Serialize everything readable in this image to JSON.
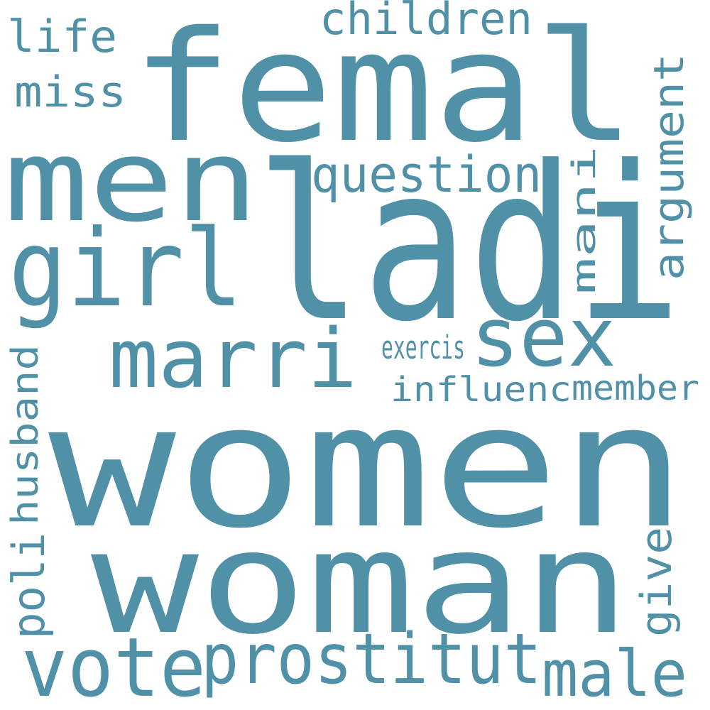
{
  "word_cloud": {
    "color": "#5191a8",
    "background": "#ffffff",
    "words": [
      {
        "id": "women",
        "text": "women"
      },
      {
        "id": "woman",
        "text": "woman"
      },
      {
        "id": "ladi",
        "text": "ladi"
      },
      {
        "id": "femal",
        "text": "femal"
      },
      {
        "id": "men",
        "text": "men"
      },
      {
        "id": "girl",
        "text": "girl"
      },
      {
        "id": "marri",
        "text": "marri"
      },
      {
        "id": "sex",
        "text": "sex"
      },
      {
        "id": "vote",
        "text": "vote"
      },
      {
        "id": "prostitut",
        "text": "prostitut"
      },
      {
        "id": "male",
        "text": "male"
      },
      {
        "id": "question",
        "text": "question"
      },
      {
        "id": "children",
        "text": "children"
      },
      {
        "id": "life",
        "text": "life"
      },
      {
        "id": "miss",
        "text": "miss"
      },
      {
        "id": "argument",
        "text": "argument"
      },
      {
        "id": "exercis",
        "text": "exercis"
      },
      {
        "id": "mani",
        "text": "mani"
      },
      {
        "id": "influenc",
        "text": "influenc"
      },
      {
        "id": "member",
        "text": "member"
      },
      {
        "id": "husband",
        "text": "husband"
      },
      {
        "id": "poli",
        "text": "poli"
      },
      {
        "id": "give",
        "text": "give"
      }
    ]
  }
}
